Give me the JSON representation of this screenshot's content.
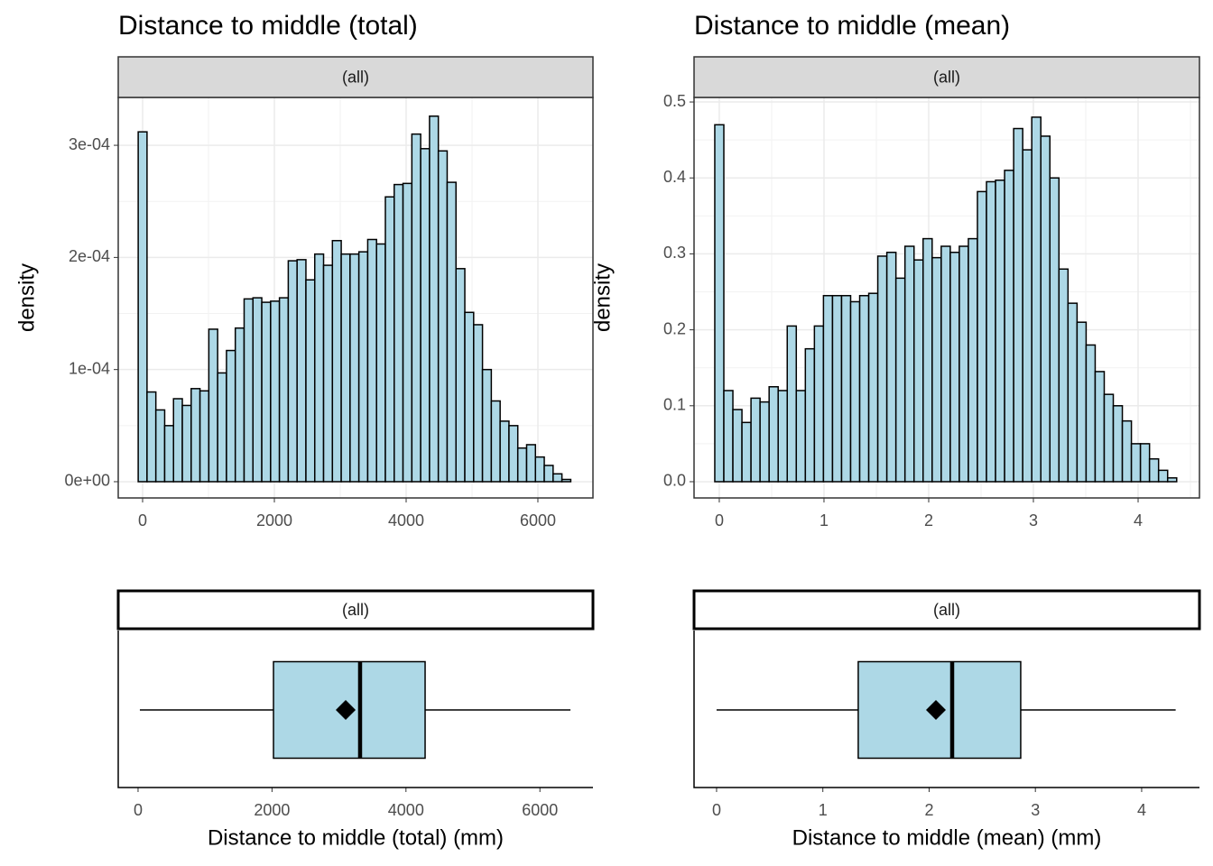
{
  "chart_data": [
    {
      "type": "histogram",
      "title": "Distance to middle (total)",
      "strip": "(all)",
      "ylabel": "density",
      "color": "#add8e6",
      "grid": true,
      "minor_grid": true,
      "bins": [
        -67,
        67,
        201,
        335,
        469,
        603,
        737,
        871,
        1005,
        1139,
        1273,
        1407,
        1541,
        1675,
        1809,
        1943,
        2077,
        2211,
        2345,
        2479,
        2613,
        2747,
        2881,
        3015,
        3149,
        3283,
        3417,
        3551,
        3685,
        3819,
        3953,
        4087,
        4221,
        4355,
        4489,
        4623,
        4757,
        4891,
        5025,
        5159,
        5293,
        5427,
        5561,
        5695,
        5829,
        5963,
        6097,
        6231,
        6365,
        6499
      ],
      "values": [
        0.000312,
        8e-05,
        6.4e-05,
        5e-05,
        7.4e-05,
        6.8e-05,
        8.3e-05,
        8.1e-05,
        0.000136,
        9.7e-05,
        0.000117,
        0.000137,
        0.000163,
        0.000164,
        0.00016,
        0.000161,
        0.000164,
        0.000197,
        0.000198,
        0.00018,
        0.000203,
        0.000193,
        0.000215,
        0.000203,
        0.000203,
        0.000205,
        0.000216,
        0.000212,
        0.000254,
        0.000265,
        0.000266,
        0.00031,
        0.000297,
        0.000326,
        0.000295,
        0.000267,
        0.00019,
        0.000151,
        0.00014,
        0.0001,
        7.2e-05,
        5.4e-05,
        5e-05,
        3e-05,
        3.3e-05,
        2.2e-05,
        1.45e-05,
        7e-06,
        2e-06
      ],
      "xlim": [
        -370,
        6836
      ],
      "xticks": [
        0,
        2000,
        4000,
        6000
      ],
      "ylim": [
        -1.45e-05,
        0.0003427
      ],
      "yticks": [
        {
          "value": 0,
          "label": "0e+00"
        },
        {
          "value": 0.0001,
          "label": "1e-04"
        },
        {
          "value": 0.0002,
          "label": "2e-04"
        },
        {
          "value": 0.0003,
          "label": "3e-04"
        }
      ]
    },
    {
      "type": "histogram",
      "title": "Distance to middle (mean)",
      "strip": "(all)",
      "ylabel": "density",
      "color": "#add8e6",
      "grid": true,
      "minor_grid": true,
      "bins": [
        -0.043,
        0.0435,
        0.13,
        0.2165,
        0.303,
        0.3895,
        0.476,
        0.5625,
        0.649,
        0.7355,
        0.822,
        0.9085,
        0.995,
        1.0815,
        1.168,
        1.2545,
        1.341,
        1.4275,
        1.514,
        1.6005,
        1.687,
        1.7735,
        1.86,
        1.9465,
        2.033,
        2.1195,
        2.206,
        2.2925,
        2.379,
        2.4655,
        2.552,
        2.6385,
        2.725,
        2.8115,
        2.898,
        2.9845,
        3.071,
        3.1575,
        3.244,
        3.3305,
        3.417,
        3.5035,
        3.59,
        3.6765,
        3.763,
        3.8495,
        3.936,
        4.0225,
        4.109,
        4.1955,
        4.282,
        4.3685
      ],
      "values": [
        0.47,
        0.12,
        0.095,
        0.078,
        0.11,
        0.105,
        0.125,
        0.12,
        0.205,
        0.12,
        0.175,
        0.205,
        0.245,
        0.245,
        0.245,
        0.237,
        0.245,
        0.248,
        0.297,
        0.302,
        0.268,
        0.31,
        0.292,
        0.32,
        0.295,
        0.31,
        0.302,
        0.31,
        0.32,
        0.382,
        0.395,
        0.397,
        0.41,
        0.465,
        0.437,
        0.48,
        0.455,
        0.4,
        0.28,
        0.235,
        0.21,
        0.18,
        0.145,
        0.115,
        0.1,
        0.08,
        0.05,
        0.05,
        0.03,
        0.015,
        0.005
      ],
      "xlim": [
        -0.241,
        4.586
      ],
      "xticks": [
        0,
        1,
        2,
        3,
        4
      ],
      "ylim": [
        -0.0214,
        0.506
      ],
      "yticks": [
        {
          "value": 0,
          "label": "0.0"
        },
        0.1,
        0.2,
        0.3,
        0.4,
        0.5
      ]
    },
    {
      "type": "box",
      "strip": "(all)",
      "xlabel": "Distance to middle (total) (mm)",
      "color": "#add8e6",
      "min": 27,
      "q1": 2022,
      "median": 3315,
      "q3": 4286,
      "max": 6456,
      "mean": 3100,
      "xlim": [
        -296,
        6792
      ],
      "xticks": [
        0,
        2000,
        4000,
        6000
      ]
    },
    {
      "type": "box",
      "strip": "(all)",
      "xlabel": "Distance to middle (mean) (mm)",
      "color": "#add8e6",
      "min": 0,
      "q1": 1.333,
      "median": 2.217,
      "q3": 2.862,
      "max": 4.32,
      "mean": 2.064,
      "xlim": [
        -0.212,
        4.544
      ],
      "xticks": [
        0,
        1,
        2,
        3,
        4
      ]
    }
  ]
}
